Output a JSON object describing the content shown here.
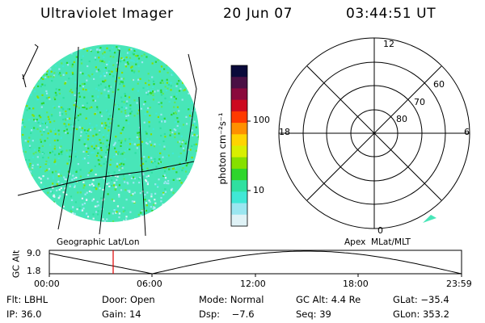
{
  "header": {
    "app_title": "Ultraviolet Imager",
    "date": "20 Jun 07",
    "time": "03:44:51 UT"
  },
  "colorbar": {
    "unit_label": "photon cm⁻²s⁻¹",
    "ticks": [
      "100",
      "10"
    ],
    "colors": [
      "#0a0a3a",
      "#4a1044",
      "#8a0a3c",
      "#cc0a20",
      "#ff3a00",
      "#ff9000",
      "#ffd400",
      "#d8ef00",
      "#86e000",
      "#2fd62c",
      "#2fe0a0",
      "#40e8d6",
      "#9ae6f0",
      "#dff2f6"
    ]
  },
  "geographic_panel": {
    "label": "Geographic Lat/Lon",
    "dominant_color": "#48e6b8"
  },
  "apex_panel": {
    "label": "Apex  MLat/MLT",
    "mlt_labels": {
      "top": "12",
      "bottom": "0",
      "left": "18",
      "right": "6"
    },
    "lat_labels": [
      "60",
      "70",
      "80"
    ]
  },
  "altitude_plot": {
    "ylabel": "GC Alt",
    "y_ticks": [
      "9.0",
      "1.8"
    ],
    "x_ticks": [
      "00:00",
      "06:00",
      "12:00",
      "18:00",
      "23:59"
    ],
    "marker_color": "#e00000"
  },
  "footer": {
    "row1": [
      "Flt: LBHL",
      "Door: Open",
      "Mode: Normal",
      "GC Alt: 4.4 Re",
      "GLat: −35.4"
    ],
    "row2": [
      "IP: 36.0",
      "Gain: 14",
      "Dsp:    −7.6",
      "Seq: 39",
      "GLon: 353.2"
    ]
  }
}
